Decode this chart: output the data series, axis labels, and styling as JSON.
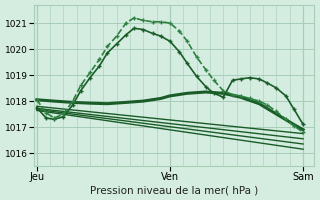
{
  "title": "Pression niveau de la mer( hPa )",
  "background_color": "#d4ede0",
  "grid_color": "#a8cdb8",
  "line_color_dark": "#1a5c28",
  "line_color_lighter": "#2d8040",
  "ylim": [
    1015.5,
    1021.7
  ],
  "yticks": [
    1016,
    1017,
    1018,
    1019,
    1020,
    1021
  ],
  "xtick_labels": [
    "Jeu",
    "Ven",
    "Sam"
  ],
  "xtick_pos": [
    0.0,
    1.0,
    2.0
  ],
  "series": [
    {
      "x": [
        0.0,
        0.07,
        0.13,
        0.2,
        0.27,
        0.33,
        0.4,
        0.47,
        0.53,
        0.6,
        0.67,
        0.73,
        0.8,
        0.87,
        0.93,
        1.0,
        1.07,
        1.13,
        1.2,
        1.27,
        1.33,
        1.4,
        1.47,
        1.53,
        1.6,
        1.67,
        1.73,
        1.8,
        1.87,
        1.93,
        2.0
      ],
      "y": [
        1018.05,
        1017.55,
        1017.35,
        1017.5,
        1018.0,
        1018.6,
        1019.1,
        1019.6,
        1020.1,
        1020.5,
        1021.0,
        1021.2,
        1021.1,
        1021.05,
        1021.05,
        1021.0,
        1020.7,
        1020.3,
        1019.7,
        1019.2,
        1018.8,
        1018.4,
        1018.25,
        1018.2,
        1018.1,
        1018.0,
        1017.85,
        1017.6,
        1017.3,
        1017.05,
        1016.8
      ],
      "marker": "+",
      "lw": 1.2,
      "ms": 3.5,
      "mew": 1.0,
      "color": "#2d8040",
      "zorder": 6
    },
    {
      "x": [
        0.0,
        0.07,
        0.13,
        0.2,
        0.27,
        0.33,
        0.4,
        0.47,
        0.53,
        0.6,
        0.67,
        0.73,
        0.8,
        0.87,
        0.93,
        1.0,
        1.07,
        1.13,
        1.2,
        1.27,
        1.33,
        1.4,
        1.47,
        1.53,
        1.6,
        1.67,
        1.73,
        1.8,
        1.87,
        1.93,
        2.0
      ],
      "y": [
        1017.75,
        1017.35,
        1017.3,
        1017.4,
        1017.85,
        1018.4,
        1018.9,
        1019.35,
        1019.85,
        1020.2,
        1020.55,
        1020.8,
        1020.75,
        1020.6,
        1020.5,
        1020.3,
        1019.9,
        1019.45,
        1018.95,
        1018.55,
        1018.3,
        1018.15,
        1018.8,
        1018.85,
        1018.9,
        1018.85,
        1018.7,
        1018.5,
        1018.2,
        1017.7,
        1017.1
      ],
      "marker": "+",
      "lw": 1.2,
      "ms": 3.5,
      "mew": 1.0,
      "color": "#1a5c28",
      "zorder": 5
    },
    {
      "x": [
        0.0,
        0.13,
        0.27,
        0.4,
        0.53,
        0.67,
        0.8,
        0.93,
        1.0,
        1.13,
        1.27,
        1.4,
        1.53,
        1.67,
        1.8,
        1.93,
        2.0
      ],
      "y": [
        1018.05,
        1018.0,
        1017.95,
        1017.92,
        1017.9,
        1017.95,
        1018.0,
        1018.1,
        1018.2,
        1018.3,
        1018.35,
        1018.3,
        1018.15,
        1017.9,
        1017.5,
        1017.1,
        1016.9
      ],
      "marker": null,
      "lw": 2.2,
      "ms": 0,
      "mew": 0,
      "color": "#1a5c28",
      "zorder": 4
    },
    {
      "x": [
        0.0,
        2.0
      ],
      "y": [
        1017.8,
        1016.75
      ],
      "marker": null,
      "lw": 1.0,
      "ms": 0,
      "mew": 0,
      "color": "#1a5c28",
      "zorder": 3
    },
    {
      "x": [
        0.0,
        2.0
      ],
      "y": [
        1017.72,
        1016.55
      ],
      "marker": null,
      "lw": 1.0,
      "ms": 0,
      "mew": 0,
      "color": "#1a5c28",
      "zorder": 3
    },
    {
      "x": [
        0.0,
        2.0
      ],
      "y": [
        1017.68,
        1016.35
      ],
      "marker": null,
      "lw": 1.0,
      "ms": 0,
      "mew": 0,
      "color": "#1a5c28",
      "zorder": 3
    },
    {
      "x": [
        0.0,
        2.0
      ],
      "y": [
        1017.64,
        1016.15
      ],
      "marker": null,
      "lw": 1.0,
      "ms": 0,
      "mew": 0,
      "color": "#1a5c28",
      "zorder": 3
    }
  ]
}
